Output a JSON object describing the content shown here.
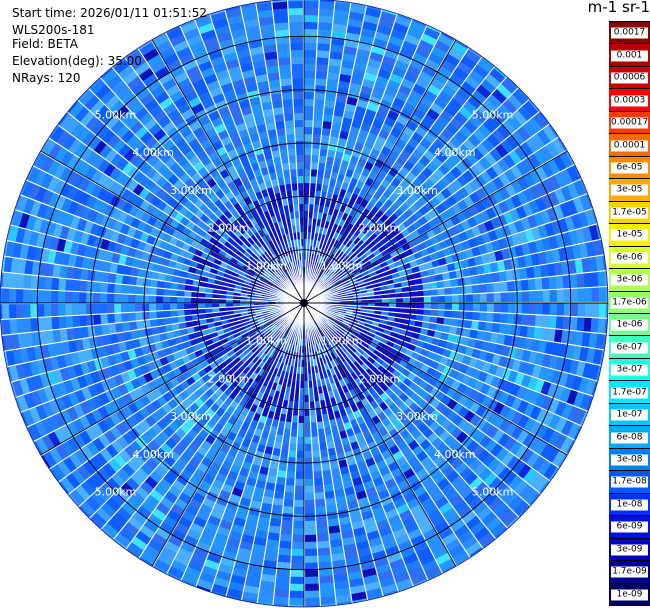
{
  "header": {
    "start_time": "Start time: 2026/01/11 01:51:52",
    "instrument": "WLS200s-181",
    "field": "Field: BETA",
    "elevation": "Elevation(deg): 35.00",
    "nrays": "NRays: 120",
    "unit": "m-1 sr-1"
  },
  "chart_data": {
    "type": "heatmap",
    "projection": "polar-ppi",
    "field": "BETA",
    "elevation_deg": 35.0,
    "n_rays": 120,
    "range_rings_km": [
      1,
      2,
      3,
      4,
      5
    ],
    "range_ring_labels": [
      "1.00km",
      "2.00km",
      "3.00km",
      "4.00km",
      "5.00km"
    ],
    "colorbar": {
      "scale": "log",
      "tick_labels": [
        "0.0017",
        "0.001",
        "0.0006",
        "0.0003",
        "0.00017",
        "0.0001",
        "6e-05",
        "3e-05",
        "1.7e-05",
        "1e-05",
        "6e-06",
        "3e-06",
        "1.7e-06",
        "1e-06",
        "6e-07",
        "3e-07",
        "1.7e-07",
        "1e-07",
        "6e-08",
        "3e-08",
        "1.7e-08",
        "1e-08",
        "6e-09",
        "3e-09",
        "1.7e-09",
        "1e-09"
      ],
      "colors": [
        "#8b0000",
        "#b00000",
        "#d00000",
        "#ff0000",
        "#ff3c00",
        "#ff6a00",
        "#ff8c00",
        "#ffaa00",
        "#ffd000",
        "#f0f000",
        "#d8ff30",
        "#b0ff50",
        "#90ff70",
        "#70ff90",
        "#40ffc0",
        "#20ffe0",
        "#00e8ff",
        "#00c8ff",
        "#00a8ff",
        "#0080ff",
        "#0058ff",
        "#0030ff",
        "#0010e0",
        "#0000c0",
        "#00008e",
        "#000060"
      ]
    },
    "dominant_value_range": [
      "1e-08",
      "1.7e-07"
    ],
    "grid": true
  },
  "ppi": {
    "background_colors": [
      "#1f7dff",
      "#2a8cff",
      "#1a6bff",
      "#3aa0ff",
      "#2f6ef2",
      "#0f5cff",
      "#4ab0ff",
      "#2395ff"
    ],
    "sparse_colors": [
      "#0a28d8",
      "#1010b8",
      "#28c8ff",
      "#40e0ff"
    ],
    "gap_color": "#ffffff",
    "grid_color": "#000000"
  }
}
